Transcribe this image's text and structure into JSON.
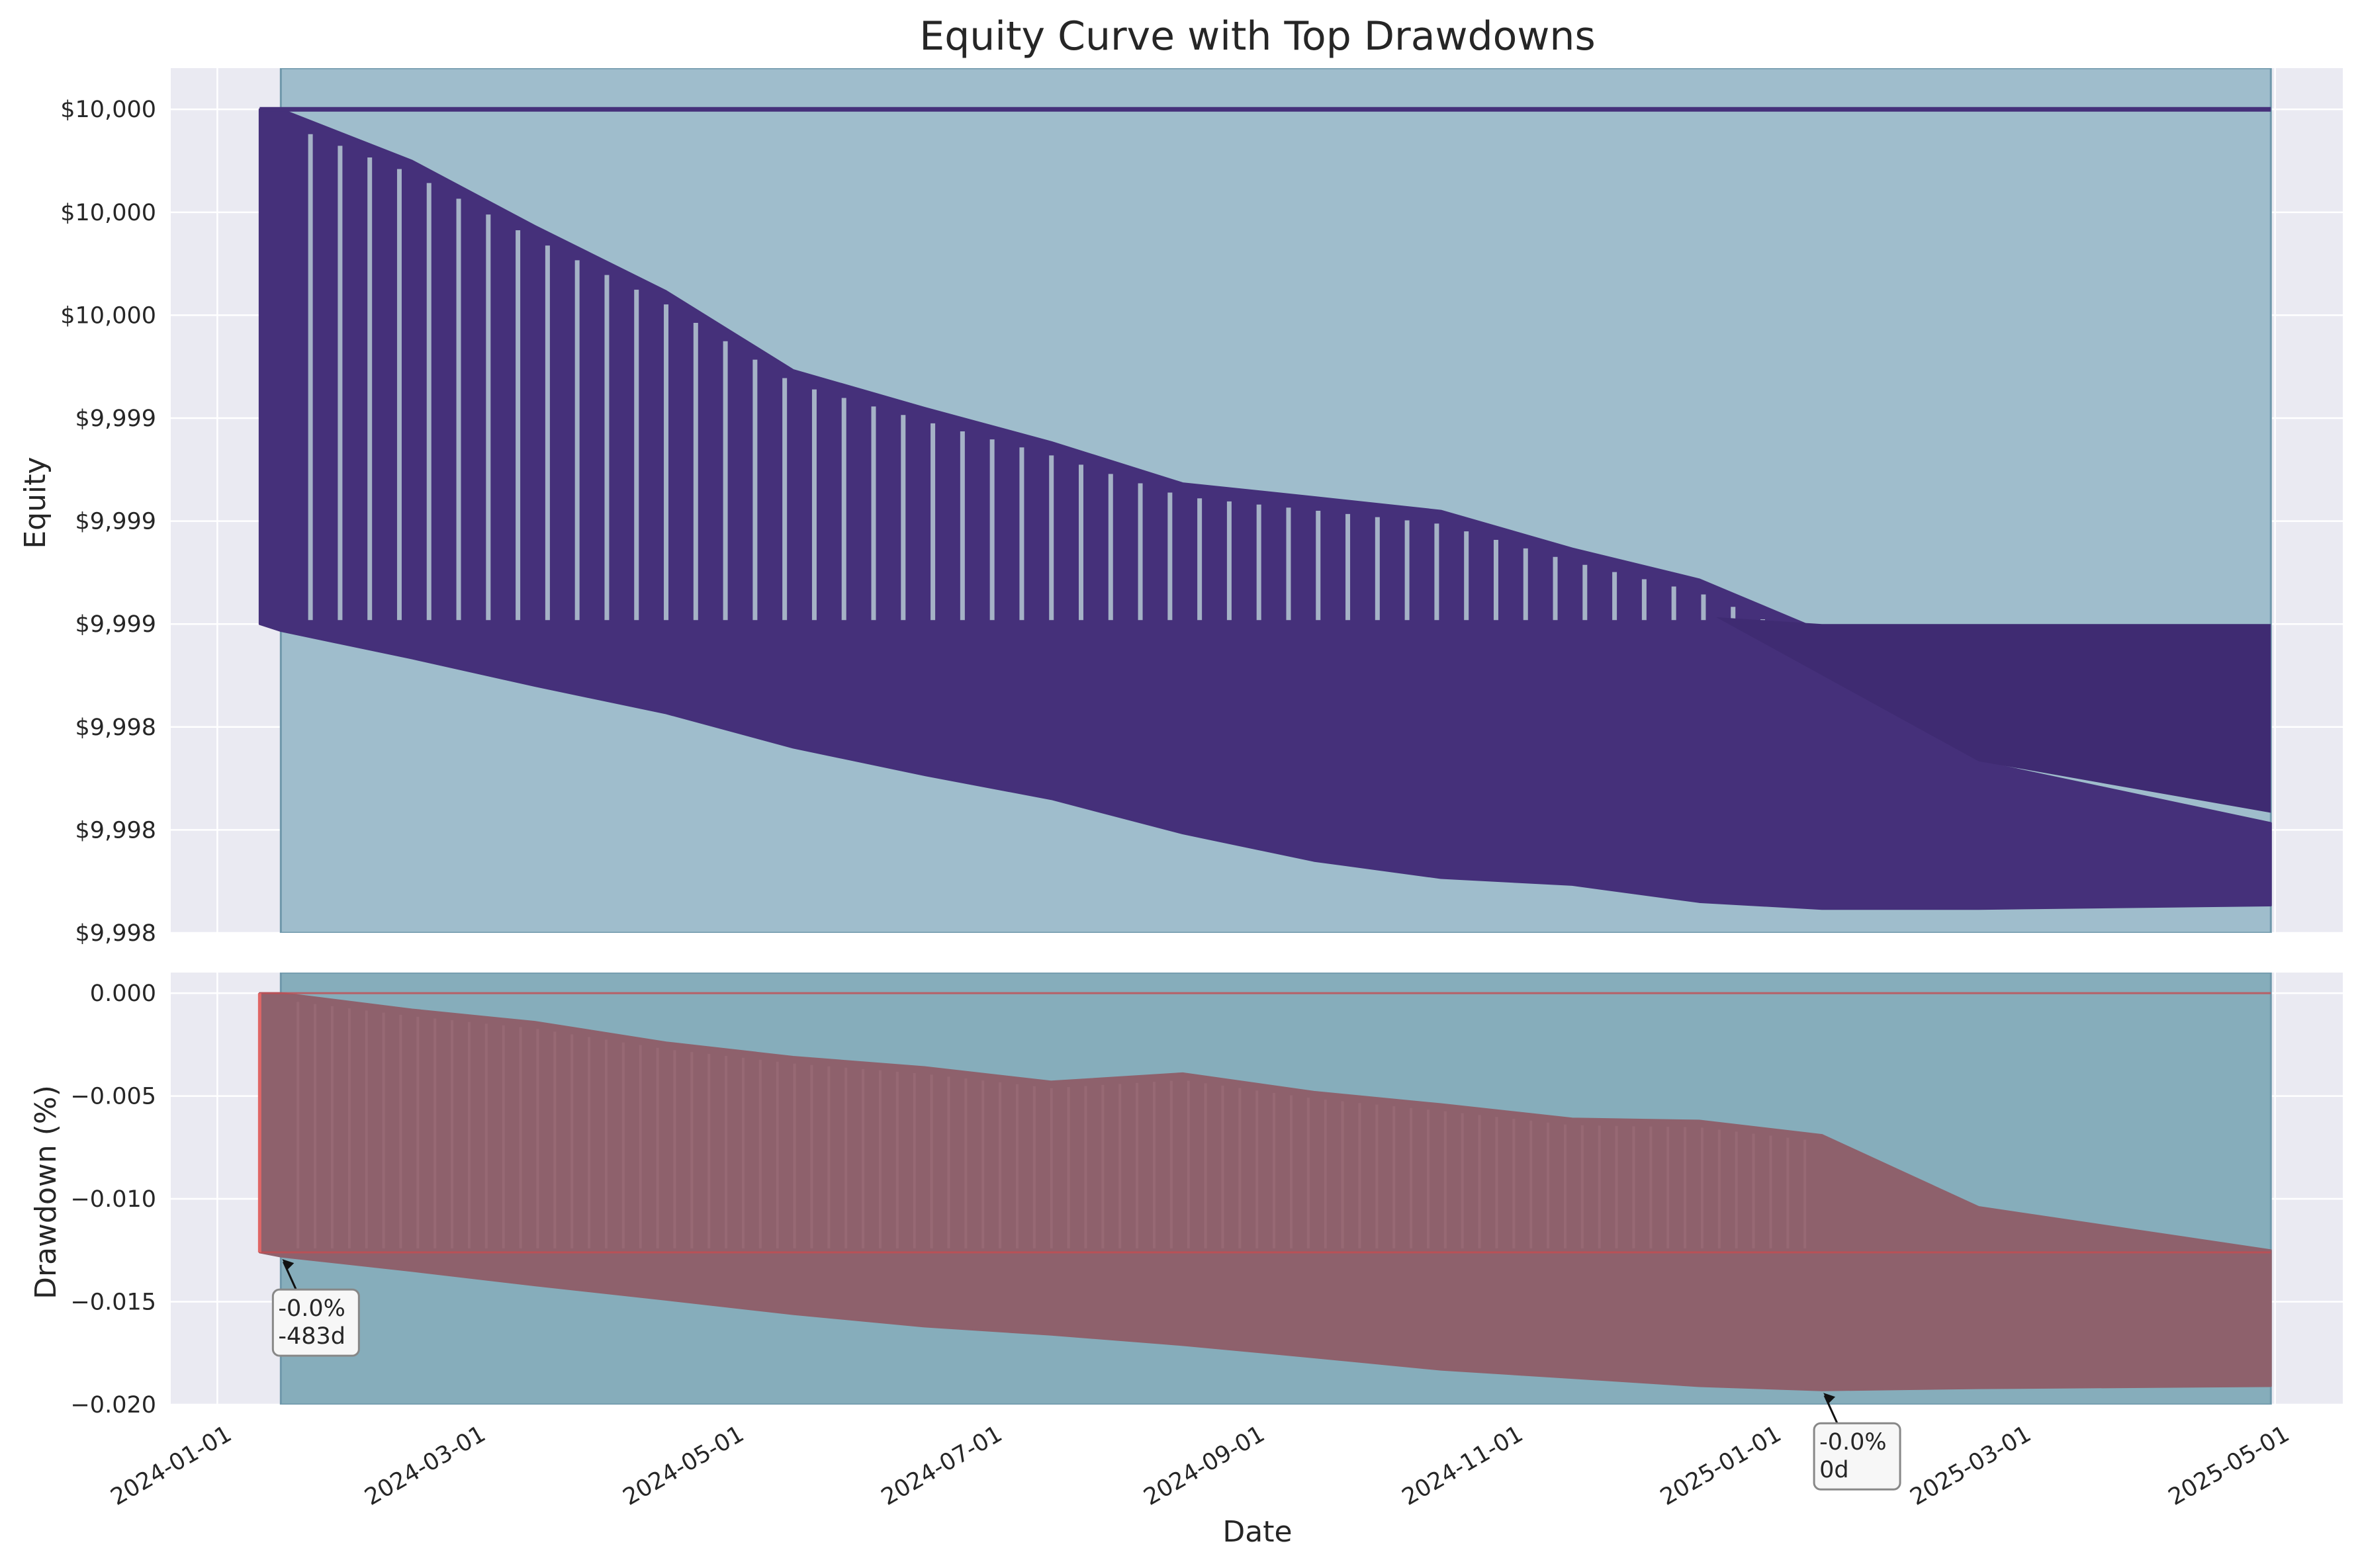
{
  "chart_data": [
    {
      "type": "area",
      "panel": "equity",
      "title": "Equity Curve with Top Drawdowns",
      "xlabel": "",
      "ylabel": "Equity",
      "xlim": [
        "2023-12-21",
        "2025-05-17"
      ],
      "ylim": [
        9997.6,
        10000.12
      ],
      "yticks": [
        {
          "value": 10000.0,
          "label": "$10,000"
        },
        {
          "value": 9999.7,
          "label": "$10,000"
        },
        {
          "value": 9999.4,
          "label": "$10,000"
        },
        {
          "value": 9999.1,
          "label": "$9,999"
        },
        {
          "value": 9998.8,
          "label": "$9,999"
        },
        {
          "value": 9998.5,
          "label": "$9,999"
        },
        {
          "value": 9998.2,
          "label": "$9,998"
        },
        {
          "value": 9997.9,
          "label": "$9,998"
        },
        {
          "value": 9997.6,
          "label": "$9,998"
        }
      ],
      "grid": true,
      "shaded_period": {
        "start": "2024-01-16",
        "end": "2025-04-30",
        "color": "#9fbdcc"
      },
      "series": [
        {
          "color": "#45307a",
          "baseline": 10000.0,
          "x": [
            "2024-01-11",
            "2024-01-16",
            "2024-02-16",
            "2024-03-16",
            "2024-04-16",
            "2024-05-16",
            "2024-06-16",
            "2024-07-16",
            "2024-08-16",
            "2024-09-16",
            "2024-10-16",
            "2024-11-16",
            "2024-12-16",
            "2025-01-14",
            "2025-02-20",
            "2025-04-30"
          ],
          "upper": [
            10000.0,
            10000.0,
            9999.85,
            9999.66,
            9999.47,
            9999.24,
            9999.13,
            9999.03,
            9998.91,
            9998.87,
            9998.83,
            9998.72,
            9998.63,
            9998.48,
            9998.1,
            9997.92
          ],
          "lower": [
            9998.5,
            9998.48,
            9998.4,
            9998.32,
            9998.24,
            9998.14,
            9998.06,
            9997.99,
            9997.89,
            9997.81,
            9997.76,
            9997.74,
            9997.69,
            9997.67,
            9997.67,
            9997.68
          ]
        }
      ]
    },
    {
      "type": "area",
      "panel": "drawdown",
      "title": "",
      "xlabel": "Date",
      "ylabel": "Drawdown (%)",
      "xlim": [
        "2023-12-21",
        "2025-05-17"
      ],
      "ylim": [
        -0.02,
        0.001
      ],
      "yticks": [
        {
          "value": 0.0,
          "label": "0.000"
        },
        {
          "value": -0.005,
          "label": "−0.005"
        },
        {
          "value": -0.01,
          "label": "−0.010"
        },
        {
          "value": -0.015,
          "label": "−0.015"
        },
        {
          "value": -0.02,
          "label": "−0.020"
        }
      ],
      "xticks": [
        "2024-01-01",
        "2024-03-01",
        "2024-05-01",
        "2024-07-01",
        "2024-09-01",
        "2024-11-01",
        "2025-01-01",
        "2025-03-01",
        "2025-05-01"
      ],
      "grid": true,
      "shaded_period": {
        "start": "2024-01-16",
        "end": "2025-04-30",
        "color": "#86adbb"
      },
      "series": [
        {
          "color": "#8e616c",
          "x": [
            "2024-01-11",
            "2024-01-16",
            "2024-02-16",
            "2024-03-16",
            "2024-04-16",
            "2024-05-16",
            "2024-06-16",
            "2024-07-16",
            "2024-08-16",
            "2024-09-16",
            "2024-10-16",
            "2024-11-16",
            "2024-12-16",
            "2025-01-14",
            "2025-02-20",
            "2025-04-30"
          ],
          "upper": [
            0.0,
            0.0,
            -0.0008,
            -0.0014,
            -0.0024,
            -0.0031,
            -0.0036,
            -0.0043,
            -0.0039,
            -0.0048,
            -0.0054,
            -0.0061,
            -0.0062,
            -0.0069,
            -0.0104,
            -0.0125
          ],
          "lower": [
            -0.0126,
            -0.0128,
            -0.0135,
            -0.0142,
            -0.0149,
            -0.0156,
            -0.0162,
            -0.0166,
            -0.0171,
            -0.0177,
            -0.0183,
            -0.0187,
            -0.0191,
            -0.0193,
            -0.0192,
            -0.0191
          ],
          "level": -0.0126
        }
      ],
      "annotations": [
        {
          "lines": [
            "-0.0%",
            "-483d"
          ],
          "x": "2024-01-16",
          "y": -0.0128
        },
        {
          "lines": [
            "-0.0%",
            "0d"
          ],
          "x": "2025-01-14",
          "y": -0.0193
        }
      ]
    }
  ]
}
